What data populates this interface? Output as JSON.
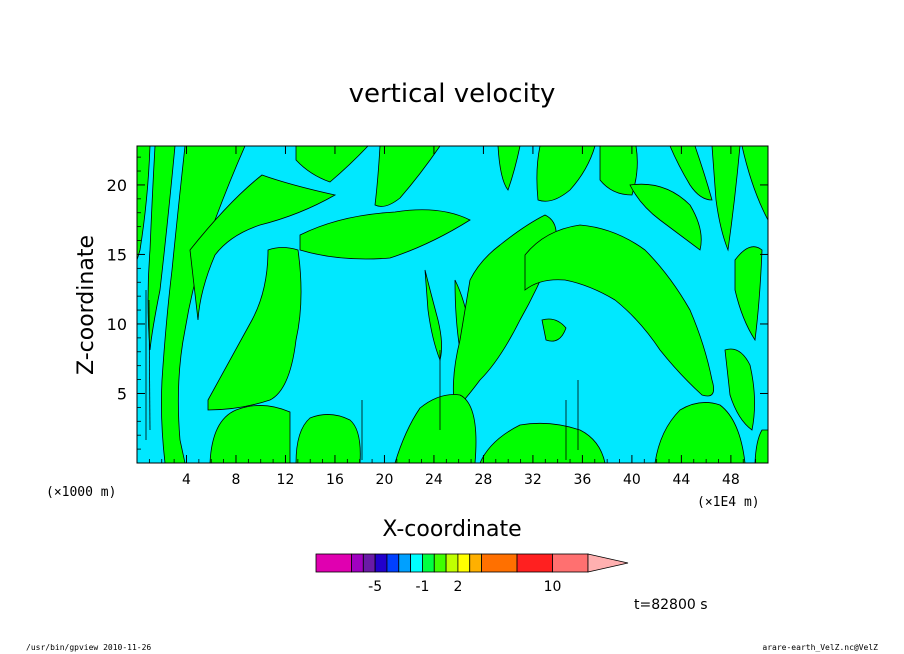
{
  "chart_data": {
    "type": "heatmap",
    "title": "vertical velocity",
    "xlabel": "X-coordinate",
    "ylabel": "Z-coordinate",
    "x_unit": "(×1E4 m)",
    "y_unit": "(×1000 m)",
    "xlim": [
      0,
      51
    ],
    "ylim": [
      0,
      22.8
    ],
    "x_ticks": [
      4,
      8,
      12,
      16,
      20,
      24,
      28,
      32,
      36,
      40,
      44,
      48
    ],
    "y_ticks": [
      5,
      10,
      15,
      20
    ],
    "colorbar": {
      "levels": [
        -10,
        -7,
        -6,
        -5,
        -4,
        -3,
        -2,
        -1,
        0,
        1,
        2,
        3,
        4,
        7,
        10,
        13,
        16
      ],
      "tick_labels": [
        "-5",
        "-1",
        "2",
        "10"
      ],
      "tick_values": [
        -5,
        -1,
        2,
        10
      ],
      "colors": [
        "#e000b0",
        "#a000c0",
        "#6a1aa6",
        "#2200cc",
        "#0040ff",
        "#00a0ff",
        "#00ffff",
        "#00ff40",
        "#40ff00",
        "#c0ff00",
        "#ffff00",
        "#ffb000",
        "#ff7000",
        "#ff2020",
        "#ff7070",
        "#ffb0b0"
      ],
      "extend": "max"
    },
    "field_colors": {
      "negative": "#00e8ff",
      "positive": "#00ff00"
    },
    "time_label": "t=82800 s"
  },
  "footer": {
    "left": "/usr/bin/gpview   2010-11-26",
    "right": "arare-earth_VelZ.nc@VelZ"
  }
}
